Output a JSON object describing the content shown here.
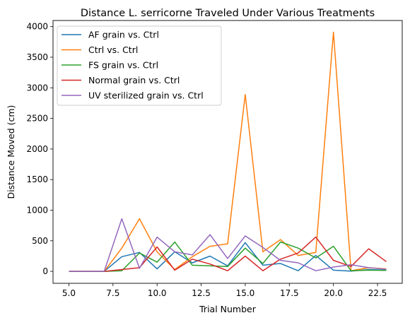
{
  "chart_data": {
    "type": "line",
    "title": "Distance L. serricorne Traveled Under Various Treatments",
    "xlabel": "Trial Number",
    "ylabel": "Distance Moved (cm)",
    "xlim": [
      4.1,
      23.9
    ],
    "ylim": [
      -195,
      4100
    ],
    "xticks": [
      5.0,
      7.5,
      10.0,
      12.5,
      15.0,
      17.5,
      20.0,
      22.5
    ],
    "xtick_labels": [
      "5.0",
      "7.5",
      "10.0",
      "12.5",
      "15.0",
      "17.5",
      "20.0",
      "22.5"
    ],
    "yticks": [
      0,
      500,
      1000,
      1500,
      2000,
      2500,
      3000,
      3500,
      4000
    ],
    "ytick_labels": [
      "0",
      "500",
      "1000",
      "1500",
      "2000",
      "2500",
      "3000",
      "3500",
      "4000"
    ],
    "grid": false,
    "legend_position": "top-left",
    "x": [
      5,
      6,
      7,
      8,
      9,
      10,
      11,
      12,
      13,
      14,
      15,
      16,
      17,
      18,
      19,
      20,
      21,
      22,
      23
    ],
    "series": [
      {
        "name": "AF grain vs. Ctrl",
        "color": "#1f77b4",
        "values": [
          0,
          0,
          0,
          240,
          310,
          40,
          320,
          140,
          250,
          90,
          470,
          100,
          130,
          10,
          260,
          20,
          5,
          30,
          20
        ]
      },
      {
        "name": "Ctrl vs. Ctrl",
        "color": "#ff7f0e",
        "values": [
          0,
          0,
          0,
          380,
          860,
          320,
          30,
          240,
          410,
          450,
          2890,
          320,
          520,
          260,
          310,
          3910,
          10,
          60,
          40
        ]
      },
      {
        "name": "FS grain vs. Ctrl",
        "color": "#2ca02c",
        "values": [
          0,
          0,
          0,
          10,
          300,
          150,
          480,
          100,
          90,
          80,
          380,
          130,
          480,
          380,
          220,
          410,
          10,
          20,
          15
        ]
      },
      {
        "name": "Normal grain vs. Ctrl",
        "color": "#d62728",
        "values": [
          0,
          0,
          0,
          30,
          60,
          400,
          20,
          200,
          120,
          10,
          250,
          10,
          200,
          300,
          560,
          180,
          80,
          370,
          160
        ]
      },
      {
        "name": "UV sterilized grain vs. Ctrl",
        "color": "#9467bd",
        "values": [
          0,
          0,
          0,
          860,
          50,
          560,
          320,
          270,
          600,
          210,
          580,
          390,
          180,
          140,
          10,
          70,
          110,
          60,
          35
        ]
      }
    ]
  }
}
